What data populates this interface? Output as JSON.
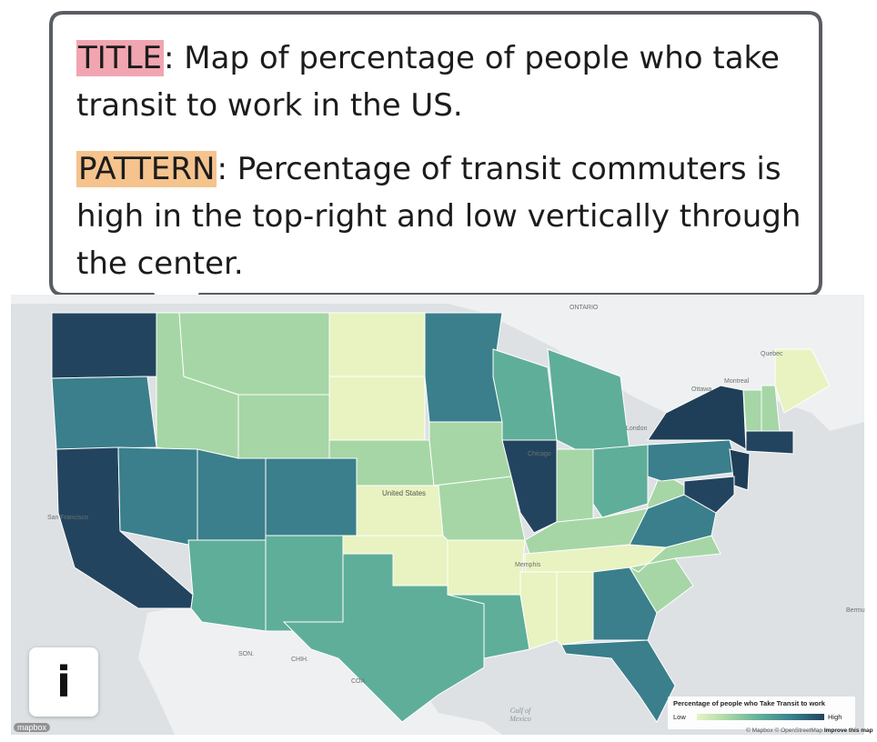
{
  "callout": {
    "title_tag": "TITLE",
    "title_sep": ":",
    "title_text": " Map of percentage of people who take transit to work in the US.",
    "pattern_tag": "PATTERN",
    "pattern_sep": ":",
    "pattern_text": " Percentage of transit commuters is high in the top-right and low vertically through the center."
  },
  "info_button": {
    "glyph": "i",
    "icon": "info-icon"
  },
  "legend": {
    "title": "Percentage of people who Take Transit to work",
    "low": "Low",
    "high": "High",
    "colors": [
      "#e8f3c1",
      "#a6d6a6",
      "#5fae9a",
      "#3a7f8b",
      "#23445f"
    ]
  },
  "attribution": {
    "text": "© Mapbox © OpenStreetMap",
    "improve": "Improve this map"
  },
  "logo": "mapbox",
  "map_labels": {
    "country": "United States",
    "gulf": "Gulf of Mexico",
    "ontario": "ONTARIO",
    "quebec": "Quebec",
    "montreal": "Montreal",
    "ottawa": "Ottawa",
    "london": "London",
    "chicago": "Chicago",
    "san_francisco": "San Francisco",
    "memphis": "Memphis",
    "sonora": "SON.",
    "chihuahua": "CHIH.",
    "coahuila": "COA.",
    "bermuda": "Bermu"
  },
  "state_levels": [
    {
      "state": "WA",
      "level": 4
    },
    {
      "state": "OR",
      "level": 3
    },
    {
      "state": "CA",
      "level": 4
    },
    {
      "state": "ID",
      "level": 1
    },
    {
      "state": "NV",
      "level": 3
    },
    {
      "state": "AZ",
      "level": 2
    },
    {
      "state": "MT",
      "level": 1
    },
    {
      "state": "WY",
      "level": 1
    },
    {
      "state": "UT",
      "level": 3
    },
    {
      "state": "CO",
      "level": 3
    },
    {
      "state": "NM",
      "level": 2
    },
    {
      "state": "ND",
      "level": 0
    },
    {
      "state": "SD",
      "level": 0
    },
    {
      "state": "NE",
      "level": 1
    },
    {
      "state": "KS",
      "level": 0
    },
    {
      "state": "OK",
      "level": 0
    },
    {
      "state": "TX",
      "level": 2
    },
    {
      "state": "MN",
      "level": 3
    },
    {
      "state": "IA",
      "level": 1
    },
    {
      "state": "MO",
      "level": 1
    },
    {
      "state": "AR",
      "level": 0
    },
    {
      "state": "LA",
      "level": 2
    },
    {
      "state": "WI",
      "level": 2
    },
    {
      "state": "IL",
      "level": 4
    },
    {
      "state": "MI",
      "level": 2
    },
    {
      "state": "IN",
      "level": 1
    },
    {
      "state": "OH",
      "level": 2
    },
    {
      "state": "KY",
      "level": 1
    },
    {
      "state": "TN",
      "level": 0
    },
    {
      "state": "MS",
      "level": 0
    },
    {
      "state": "AL",
      "level": 0
    },
    {
      "state": "GA",
      "level": 3
    },
    {
      "state": "FL",
      "level": 3
    },
    {
      "state": "SC",
      "level": 1
    },
    {
      "state": "NC",
      "level": 1
    },
    {
      "state": "VA",
      "level": 3
    },
    {
      "state": "WV",
      "level": 1
    },
    {
      "state": "PA",
      "level": 3
    },
    {
      "state": "NY",
      "level": 5
    },
    {
      "state": "VT",
      "level": 1
    },
    {
      "state": "NH",
      "level": 1
    },
    {
      "state": "ME",
      "level": 0
    },
    {
      "state": "MA",
      "level": 4
    },
    {
      "state": "NJ",
      "level": 5
    },
    {
      "state": "MD",
      "level": 4
    }
  ]
}
